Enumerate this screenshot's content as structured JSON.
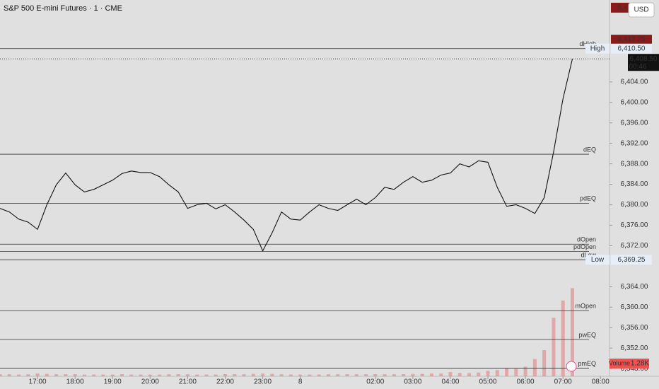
{
  "chart_data": {
    "type": "line",
    "title": "S&P 500 E-mini Futures · 1 · CME",
    "currency": "USD",
    "categories": [
      null,
      null,
      null,
      null,
      "17:00",
      null,
      null,
      null,
      "18:00",
      null,
      null,
      null,
      "19:00",
      null,
      null,
      null,
      "20:00",
      null,
      null,
      null,
      "21:00",
      null,
      null,
      null,
      "22:00",
      null,
      null,
      null,
      "23:00",
      null,
      null,
      null,
      "8",
      null,
      null,
      null,
      null,
      null,
      null,
      null,
      "02:00",
      null,
      null,
      null,
      "03:00",
      null,
      null,
      null,
      "04:00",
      null,
      null,
      null,
      "05:00",
      null,
      null,
      null,
      "06:00",
      null,
      null,
      null,
      "07:00",
      null,
      null,
      null,
      "08:00"
    ],
    "series": [
      {
        "name": "Price",
        "color": "#111111",
        "values": [
          6379.3,
          6378.6,
          6377.2,
          6376.6,
          6375.2,
          6380,
          6383.9,
          6386.2,
          6383.9,
          6382.5,
          6383,
          6383.9,
          6384.8,
          6386.1,
          6386.6,
          6386.3,
          6386.3,
          6385.5,
          6383.9,
          6382.5,
          6379.3,
          6380,
          6380.3,
          6379.2,
          6380,
          6378.6,
          6377,
          6375.2,
          6371,
          6374.5,
          6378.6,
          6377.2,
          6377,
          6378.6,
          6380,
          6379.3,
          6378.9,
          6380,
          6381.1,
          6380,
          6381.4,
          6383.4,
          6383,
          6384.4,
          6385.5,
          6384.4,
          6384.8,
          6385.8,
          6386.2,
          6388,
          6387.4,
          6388.6,
          6388.3,
          6383.4,
          6379.7,
          6380,
          6379.3,
          6378.3,
          6381.4,
          6390.3,
          6400.7,
          6408.5,
          null,
          null,
          null
        ]
      },
      {
        "name": "Volume",
        "color": "#e07a7a",
        "values": [
          30,
          30,
          25,
          30,
          40,
          35,
          30,
          30,
          30,
          25,
          25,
          25,
          25,
          30,
          25,
          25,
          25,
          25,
          30,
          30,
          30,
          25,
          25,
          25,
          30,
          30,
          30,
          35,
          40,
          35,
          30,
          25,
          25,
          25,
          25,
          30,
          30,
          30,
          30,
          30,
          30,
          30,
          30,
          30,
          35,
          35,
          40,
          40,
          60,
          50,
          45,
          55,
          80,
          90,
          120,
          110,
          140,
          250,
          380,
          850,
          1100,
          1280,
          null,
          null,
          null
        ],
        "vlim": [
          0,
          1500
        ],
        "last_label": "1.28K"
      }
    ],
    "ylim": [
      6346.5,
      6420
    ],
    "yticks": [
      {
        "value": 6348,
        "label": "6,348.00"
      },
      {
        "value": 6352,
        "label": "6,352.00"
      },
      {
        "value": 6356,
        "label": "6,356.00"
      },
      {
        "value": 6360,
        "label": "6,360.00"
      },
      {
        "value": 6364,
        "label": "6,364.00"
      },
      {
        "value": 6372,
        "label": "6,372.00"
      },
      {
        "value": 6376,
        "label": "6,376.00"
      },
      {
        "value": 6380,
        "label": "6,380.00"
      },
      {
        "value": 6384,
        "label": "6,384.00"
      },
      {
        "value": 6388,
        "label": "6,388.00"
      },
      {
        "value": 6392,
        "label": "6,392.00"
      },
      {
        "value": 6396,
        "label": "6,396.00"
      },
      {
        "value": 6400,
        "label": "6,400.00"
      },
      {
        "value": 6404,
        "label": "6,404.00"
      }
    ],
    "levels": [
      {
        "name": "dHigh",
        "value": 6410.5
      },
      {
        "name": "dEQ",
        "value": 6389.875
      },
      {
        "name": "pdEQ",
        "value": 6380.3
      },
      {
        "name": "dOpen",
        "value": 6372.3
      },
      {
        "name": "pdOpen",
        "value": 6370.9
      },
      {
        "name": "dLow",
        "value": 6369.25
      },
      {
        "name": "mOpen",
        "value": 6359.3
      },
      {
        "name": "pwEQ",
        "value": 6353.7
      },
      {
        "name": "pmEQ",
        "value": 6348.1
      }
    ],
    "markers": [
      {
        "value": 6418.5,
        "label": "6,418.50",
        "color": "#8b1a1a"
      },
      {
        "value": 6412.25,
        "label": "6,412.25",
        "color": "#8b1a1a"
      },
      {
        "value": 6410.5,
        "label": "6,410.50",
        "tag": "High",
        "color": "#e8eef8"
      },
      {
        "value": 6369.25,
        "label": "6,369.25",
        "tag": "Low",
        "color": "#e8eef8"
      }
    ],
    "last": {
      "value": 6408.5,
      "label": "6,408.50",
      "countdown": "00:46",
      "color": "#111111"
    }
  }
}
